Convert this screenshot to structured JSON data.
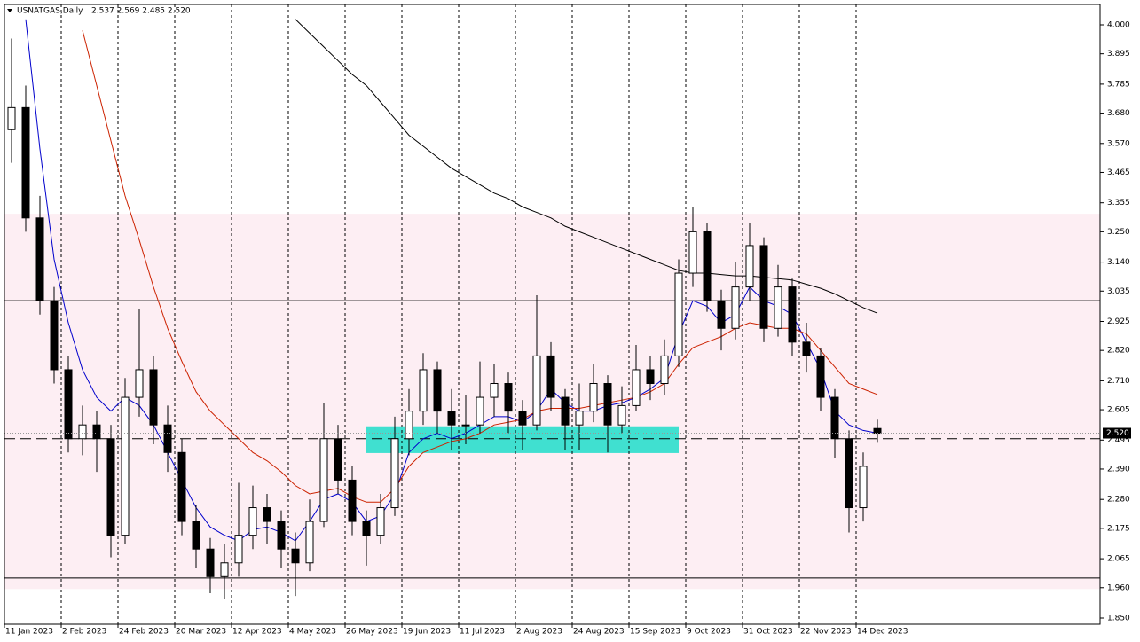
{
  "chart_data": {
    "type": "candlestick",
    "title": "USNATGAS,Daily",
    "ohlc_text": "2.537 2.569 2.485 2.520",
    "categories": [
      "11 Jan 2023",
      null,
      null,
      null,
      "2 Feb 2023",
      null,
      null,
      null,
      "24 Feb 2023",
      null,
      null,
      null,
      "20 Mar 2023",
      null,
      null,
      null,
      "12 Apr 2023",
      null,
      null,
      null,
      "4 May 2023",
      null,
      null,
      null,
      "26 May 2023",
      null,
      null,
      null,
      "19 Jun 2023",
      null,
      null,
      null,
      "11 Jul 2023",
      null,
      null,
      null,
      "2 Aug 2023",
      null,
      null,
      null,
      "24 Aug 2023",
      null,
      null,
      null,
      "15 Sep 2023",
      null,
      null,
      null,
      "9 Oct 2023",
      null,
      null,
      null,
      "31 Oct 2023",
      null,
      null,
      null,
      "22 Nov 2023",
      null,
      null,
      null,
      "14 Dec 2023",
      null
    ],
    "ohlc": [
      [
        3.62,
        3.95,
        3.5,
        3.7
      ],
      [
        3.7,
        3.78,
        3.25,
        3.3
      ],
      [
        3.3,
        3.38,
        2.95,
        3.0
      ],
      [
        3.0,
        3.05,
        2.7,
        2.75
      ],
      [
        2.75,
        2.8,
        2.45,
        2.5
      ],
      [
        2.5,
        2.62,
        2.44,
        2.55
      ],
      [
        2.55,
        2.6,
        2.38,
        2.5
      ],
      [
        2.5,
        2.55,
        2.07,
        2.15
      ],
      [
        2.15,
        2.72,
        2.12,
        2.65
      ],
      [
        2.65,
        2.97,
        2.58,
        2.75
      ],
      [
        2.75,
        2.8,
        2.48,
        2.55
      ],
      [
        2.55,
        2.62,
        2.38,
        2.45
      ],
      [
        2.45,
        2.5,
        2.15,
        2.2
      ],
      [
        2.2,
        2.26,
        2.03,
        2.1
      ],
      [
        2.1,
        2.14,
        1.94,
        2.0
      ],
      [
        2.0,
        2.12,
        1.92,
        2.05
      ],
      [
        2.05,
        2.34,
        2.0,
        2.15
      ],
      [
        2.15,
        2.33,
        2.1,
        2.25
      ],
      [
        2.25,
        2.3,
        2.12,
        2.2
      ],
      [
        2.2,
        2.24,
        2.03,
        2.1
      ],
      [
        2.1,
        2.16,
        1.93,
        2.05
      ],
      [
        2.05,
        2.28,
        2.02,
        2.2
      ],
      [
        2.2,
        2.63,
        2.18,
        2.5
      ],
      [
        2.5,
        2.55,
        2.3,
        2.35
      ],
      [
        2.35,
        2.4,
        2.15,
        2.2
      ],
      [
        2.2,
        2.24,
        2.04,
        2.15
      ],
      [
        2.15,
        2.3,
        2.12,
        2.25
      ],
      [
        2.25,
        2.58,
        2.22,
        2.5
      ],
      [
        2.5,
        2.68,
        2.44,
        2.6
      ],
      [
        2.6,
        2.81,
        2.55,
        2.75
      ],
      [
        2.75,
        2.78,
        2.52,
        2.6
      ],
      [
        2.6,
        2.68,
        2.46,
        2.55
      ],
      [
        2.55,
        2.66,
        2.48,
        2.55
      ],
      [
        2.55,
        2.78,
        2.52,
        2.65
      ],
      [
        2.65,
        2.77,
        2.58,
        2.7
      ],
      [
        2.7,
        2.74,
        2.52,
        2.6
      ],
      [
        2.6,
        2.64,
        2.46,
        2.55
      ],
      [
        2.55,
        3.02,
        2.53,
        2.8
      ],
      [
        2.8,
        2.85,
        2.6,
        2.65
      ],
      [
        2.65,
        2.68,
        2.46,
        2.55
      ],
      [
        2.55,
        2.7,
        2.46,
        2.6
      ],
      [
        2.6,
        2.77,
        2.56,
        2.7
      ],
      [
        2.7,
        2.73,
        2.45,
        2.55
      ],
      [
        2.55,
        2.69,
        2.52,
        2.62
      ],
      [
        2.62,
        2.84,
        2.6,
        2.75
      ],
      [
        2.75,
        2.8,
        2.64,
        2.7
      ],
      [
        2.7,
        2.86,
        2.66,
        2.8
      ],
      [
        2.8,
        3.15,
        2.76,
        3.1
      ],
      [
        3.1,
        3.34,
        3.05,
        3.25
      ],
      [
        3.25,
        3.28,
        2.96,
        3.0
      ],
      [
        3.0,
        3.04,
        2.82,
        2.9
      ],
      [
        2.9,
        3.14,
        2.86,
        3.05
      ],
      [
        3.05,
        3.28,
        3.0,
        3.2
      ],
      [
        3.2,
        3.23,
        2.85,
        2.9
      ],
      [
        2.9,
        3.13,
        2.87,
        3.05
      ],
      [
        3.05,
        3.08,
        2.8,
        2.85
      ],
      [
        2.85,
        2.92,
        2.74,
        2.8
      ],
      [
        2.8,
        2.83,
        2.6,
        2.65
      ],
      [
        2.65,
        2.68,
        2.43,
        2.5
      ],
      [
        2.5,
        2.53,
        2.16,
        2.25
      ],
      [
        2.25,
        2.45,
        2.2,
        2.4
      ],
      [
        2.537,
        2.569,
        2.485,
        2.52
      ]
    ],
    "series": [
      {
        "color": "#0000cc",
        "values": [
          null,
          4.02,
          3.55,
          3.15,
          2.92,
          2.75,
          2.65,
          2.6,
          2.65,
          2.62,
          2.55,
          2.45,
          2.35,
          2.25,
          2.18,
          2.15,
          2.13,
          2.17,
          2.18,
          2.16,
          2.13,
          2.2,
          2.28,
          2.3,
          2.27,
          2.2,
          2.22,
          2.3,
          2.45,
          2.5,
          2.52,
          2.5,
          2.52,
          2.55,
          2.58,
          2.58,
          2.56,
          2.6,
          2.68,
          2.63,
          2.6,
          2.6,
          2.62,
          2.63,
          2.65,
          2.68,
          2.72,
          2.88,
          3.0,
          2.98,
          2.92,
          2.95,
          3.05,
          3.0,
          2.98,
          2.95,
          2.85,
          2.75,
          2.6,
          2.55,
          2.53,
          2.52
        ]
      },
      {
        "color": "#cc2200",
        "values": [
          null,
          null,
          null,
          null,
          null,
          3.98,
          3.78,
          3.58,
          3.38,
          3.22,
          3.05,
          2.9,
          2.78,
          2.67,
          2.6,
          2.55,
          2.5,
          2.45,
          2.42,
          2.38,
          2.33,
          2.3,
          2.31,
          2.32,
          2.29,
          2.27,
          2.27,
          2.32,
          2.4,
          2.45,
          2.47,
          2.49,
          2.5,
          2.52,
          2.55,
          2.56,
          2.57,
          2.6,
          2.61,
          2.61,
          2.61,
          2.62,
          2.63,
          2.64,
          2.65,
          2.67,
          2.7,
          2.77,
          2.83,
          2.85,
          2.87,
          2.9,
          2.92,
          2.91,
          2.9,
          2.9,
          2.88,
          2.82,
          2.76,
          2.7,
          2.68,
          2.66
        ]
      },
      {
        "color": "#000000",
        "values": [
          null,
          null,
          null,
          null,
          null,
          null,
          null,
          null,
          null,
          null,
          null,
          null,
          null,
          null,
          null,
          null,
          null,
          null,
          null,
          null,
          4.02,
          3.97,
          3.92,
          3.87,
          3.82,
          3.78,
          3.72,
          3.66,
          3.6,
          3.56,
          3.52,
          3.48,
          3.45,
          3.42,
          3.39,
          3.37,
          3.34,
          3.32,
          3.3,
          3.27,
          3.25,
          3.23,
          3.21,
          3.19,
          3.17,
          3.15,
          3.13,
          3.11,
          3.1,
          3.1,
          3.095,
          3.09,
          3.09,
          3.085,
          3.08,
          3.075,
          3.06,
          3.045,
          3.025,
          3.0,
          2.975,
          2.955
        ]
      }
    ],
    "zones": [
      {
        "ylim": [
          1.955,
          3.315
        ],
        "color": "#fdeef3"
      },
      {
        "ylim": [
          2.448,
          2.545
        ],
        "color": "#40e0d0"
      }
    ],
    "levels": [
      {
        "value": 3.0,
        "style": "solid"
      },
      {
        "value": 1.995,
        "style": "solid"
      },
      {
        "value": 2.5,
        "style": "dashed"
      }
    ],
    "last_price": {
      "value": 2.52,
      "label": "2.520"
    },
    "ylim": [
      1.85,
      4.0
    ],
    "yticks": [
      {
        "value": 4.0,
        "label": "4.000"
      },
      {
        "value": 3.895,
        "label": "3.895"
      },
      {
        "value": 3.785,
        "label": "3.785"
      },
      {
        "value": 3.68,
        "label": "3.680"
      },
      {
        "value": 3.57,
        "label": "3.570"
      },
      {
        "value": 3.465,
        "label": "3.465"
      },
      {
        "value": 3.355,
        "label": "3.355"
      },
      {
        "value": 3.25,
        "label": "3.250"
      },
      {
        "value": 3.14,
        "label": "3.140"
      },
      {
        "value": 3.035,
        "label": "3.035"
      },
      {
        "value": 2.925,
        "label": "2.925"
      },
      {
        "value": 2.82,
        "label": "2.820"
      },
      {
        "value": 2.71,
        "label": "2.710"
      },
      {
        "value": 2.605,
        "label": "2.605"
      },
      {
        "value": 2.495,
        "label": "2.495"
      },
      {
        "value": 2.39,
        "label": "2.390"
      },
      {
        "value": 2.28,
        "label": "2.280"
      },
      {
        "value": 2.175,
        "label": "2.175"
      },
      {
        "value": 2.065,
        "label": "2.065"
      },
      {
        "value": 1.96,
        "label": "1.960"
      },
      {
        "value": 1.85,
        "label": "1.850"
      }
    ],
    "grid": true
  }
}
